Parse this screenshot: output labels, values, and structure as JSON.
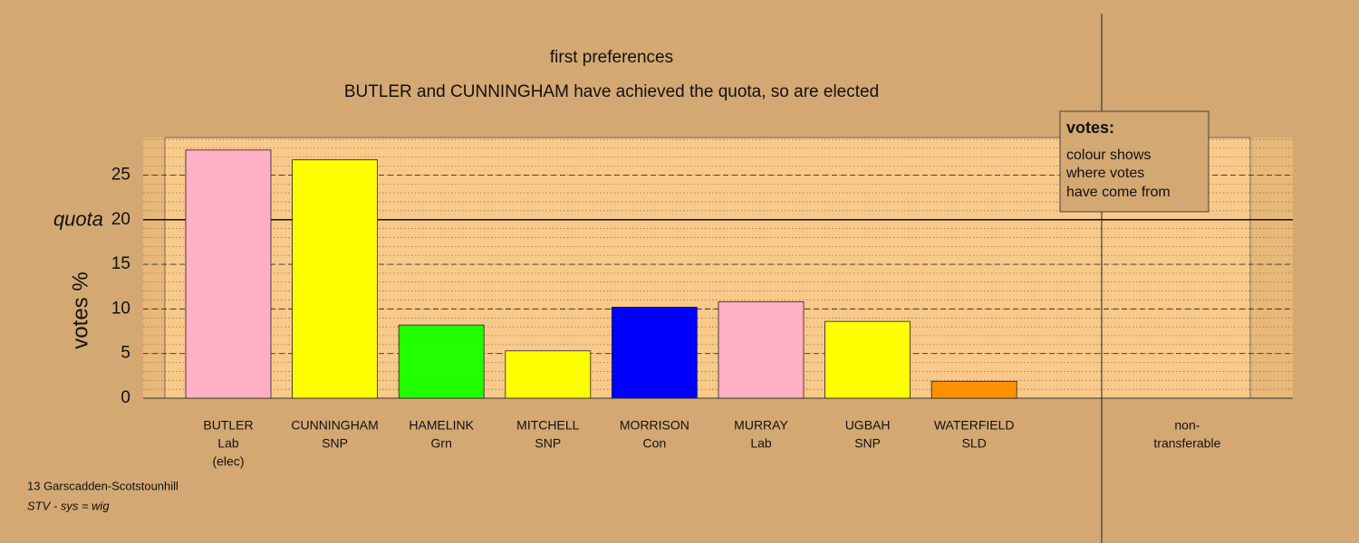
{
  "chart_data": {
    "type": "bar",
    "title": "first preferences",
    "subtitle": "BUTLER and CUNNINGHAM have achieved the quota, so are elected",
    "ylabel": "votes %",
    "categories": [
      [
        "BUTLER",
        "Lab",
        "(elec)"
      ],
      [
        "CUNNINGHAM",
        "SNP"
      ],
      [
        "HAMELINK",
        "Grn"
      ],
      [
        "MITCHELL",
        "SNP"
      ],
      [
        "MORRISON",
        "Con"
      ],
      [
        "MURRAY",
        "Lab"
      ],
      [
        "UGBAH",
        "SNP"
      ],
      [
        "WATERFIELD",
        "SLD"
      ],
      [
        "non-",
        "transferable"
      ]
    ],
    "values": [
      27.8,
      26.7,
      8.2,
      5.3,
      10.2,
      10.8,
      8.6,
      1.9,
      0
    ],
    "colors": [
      "#ffb0c4",
      "#ffff00",
      "#22ff00",
      "#ffff00",
      "#0000ff",
      "#ffb0c4",
      "#ffff00",
      "#ff9000",
      "#888888"
    ],
    "ylim": [
      0,
      29.2
    ],
    "yticks": [
      0,
      5,
      10,
      15,
      20,
      25
    ],
    "ygrid_minor_step": 1,
    "quota": {
      "value": 20,
      "label": "quota"
    },
    "legend": {
      "title": "votes:",
      "lines": [
        "colour shows",
        "where votes",
        "have come from"
      ]
    },
    "footnotes": [
      "13 Garscadden-Scotstounhill",
      "STV - sys = wig"
    ]
  }
}
